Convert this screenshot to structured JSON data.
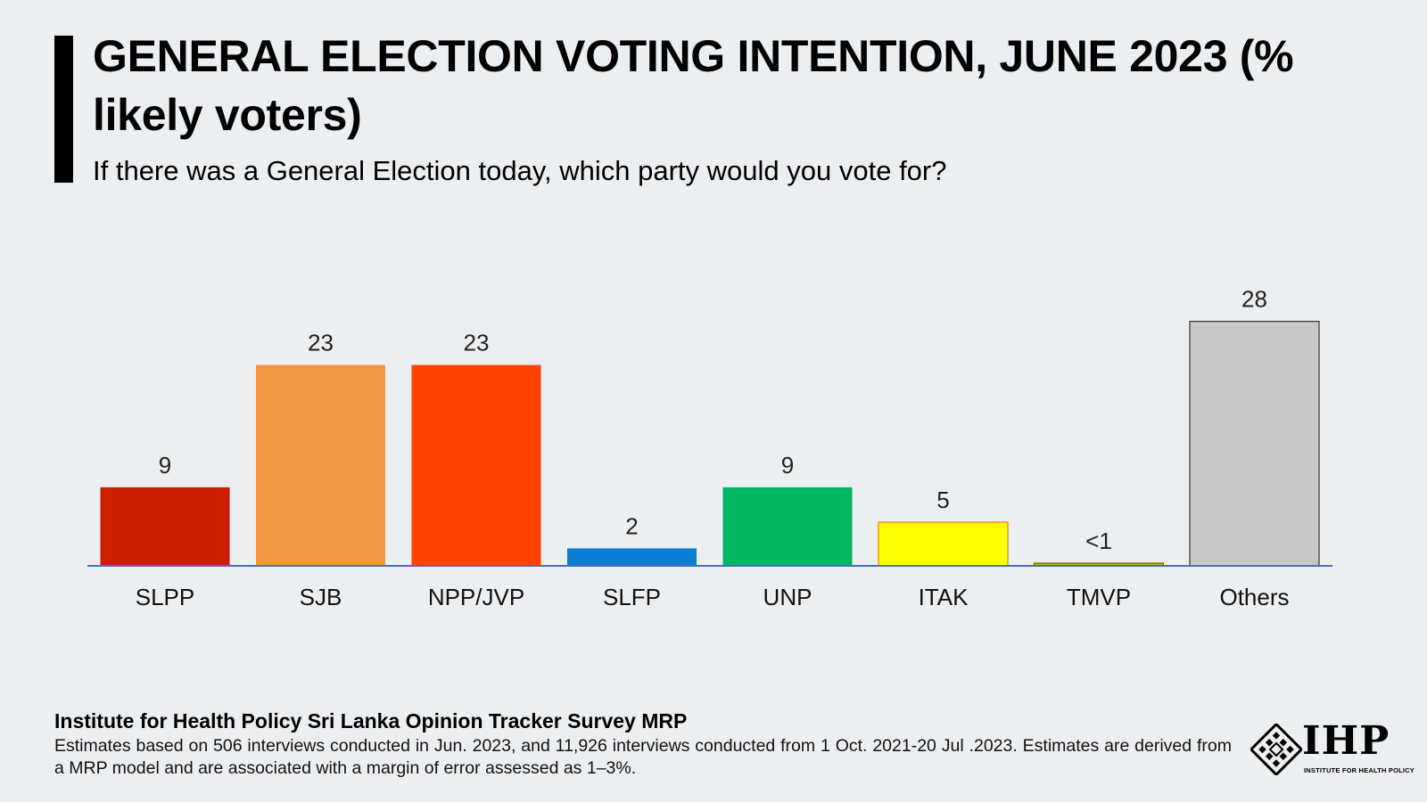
{
  "header": {
    "title": "GENERAL ELECTION VOTING INTENTION, JUNE 2023 (% likely voters)",
    "subtitle": "If there was a General Election today, which party would you vote for?"
  },
  "chart_data": {
    "type": "bar",
    "title": "GENERAL ELECTION VOTING INTENTION, JUNE 2023 (% likely voters)",
    "subtitle": "If there was a General Election today, which party would you vote for?",
    "categories": [
      "SLPP",
      "SJB",
      "NPP/JVP",
      "SLFP",
      "UNP",
      "ITAK",
      "TMVP",
      "Others"
    ],
    "values": [
      9,
      23,
      23,
      2,
      9,
      5,
      0.3,
      28
    ],
    "data_labels": [
      "9",
      "23",
      "23",
      "2",
      "9",
      "5",
      "<1",
      "28"
    ],
    "colors": [
      "#cc1f00",
      "#f29442",
      "#ff4200",
      "#0a7dd0",
      "#00b864",
      "#ffff00",
      "#c8b428",
      "#c8c8c8"
    ],
    "bar_outline_colors": [
      "none",
      "none",
      "none",
      "none",
      "none",
      "#f08000",
      "#6b5b00",
      "#333333"
    ],
    "xlabel": "",
    "ylabel": "",
    "ylim": [
      0,
      30
    ],
    "grid": false,
    "legend": "none",
    "axis_color": "#4a6fb5"
  },
  "footer": {
    "source_title": "Institute for Health Policy Sri Lanka Opinion Tracker Survey MRP",
    "note": "Estimates based on 506 interviews conducted in Jun. 2023, and 11,926 interviews conducted from 1 Oct. 2021-20 Jul .2023. Estimates are derived from a MRP model and are associated with a margin of error assessed as 1–3%."
  },
  "logo": {
    "name": "IHP",
    "tagline": "INSTITUTE FOR HEALTH POLICY",
    "icon": "ihp-logo-icon"
  }
}
